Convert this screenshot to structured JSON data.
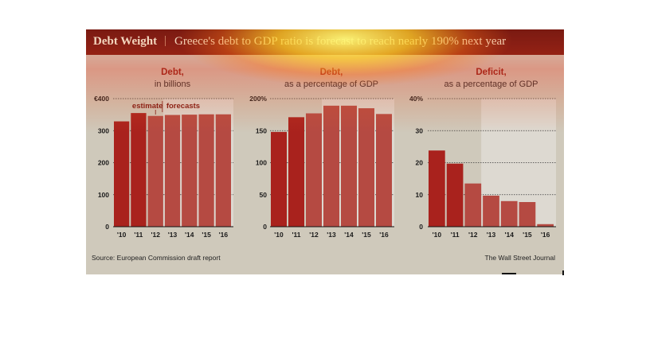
{
  "header": {
    "title": "Debt Weight",
    "separator": "|",
    "subtitle": "Greece's debt to GDP ratio is forecast to reach nearly 190% next year"
  },
  "footer": {
    "source": "Source: European Commission draft report",
    "credit": "The Wall Street Journal"
  },
  "colors": {
    "bar_actual": "#a9221d",
    "bar_forecast": "#b54a42",
    "header_bg": "#7a1a12",
    "panel_bg": "#cfc9bb",
    "forecast_bg": "#ddd9d1"
  },
  "chart_data": [
    {
      "type": "bar",
      "title": "Debt,",
      "subtitle": "in billions",
      "categories": [
        "'10",
        "'11",
        "'12",
        "'13",
        "'14",
        "'15",
        "'16"
      ],
      "values": [
        329,
        355,
        346,
        349,
        350,
        351,
        351
      ],
      "ylim": [
        0,
        400
      ],
      "yticks": [
        0,
        100,
        200,
        300,
        400
      ],
      "ytick_labels": [
        "0",
        "100",
        "200",
        "300",
        "€400"
      ],
      "estimate_index": 2,
      "forecast_start_index": 3,
      "annotations": {
        "estimate": "estimate",
        "forecasts": "forecasts"
      }
    },
    {
      "type": "bar",
      "title": "Debt,",
      "subtitle": "as a percentage of GDP",
      "categories": [
        "'10",
        "'11",
        "'12",
        "'13",
        "'14",
        "'15",
        "'16"
      ],
      "values": [
        148,
        171,
        177,
        189,
        189,
        185,
        176
      ],
      "ylim": [
        0,
        200
      ],
      "yticks": [
        0,
        50,
        100,
        150,
        200
      ],
      "ytick_labels": [
        "0",
        "50",
        "100",
        "150",
        "200%"
      ],
      "estimate_index": 2,
      "forecast_start_index": 3
    },
    {
      "type": "bar",
      "title": "Deficit,",
      "subtitle": "as a percentage of GDP",
      "categories": [
        "'10",
        "'11",
        "'12",
        "'13",
        "'14",
        "'15",
        "'16"
      ],
      "values": [
        23.8,
        19.7,
        13.5,
        9.7,
        8.0,
        7.7,
        0.8
      ],
      "ylim": [
        0,
        40
      ],
      "yticks": [
        0,
        10,
        20,
        30,
        40
      ],
      "ytick_labels": [
        "0",
        "10",
        "20",
        "30",
        "40%"
      ],
      "estimate_index": 2,
      "forecast_start_index": 3
    }
  ]
}
